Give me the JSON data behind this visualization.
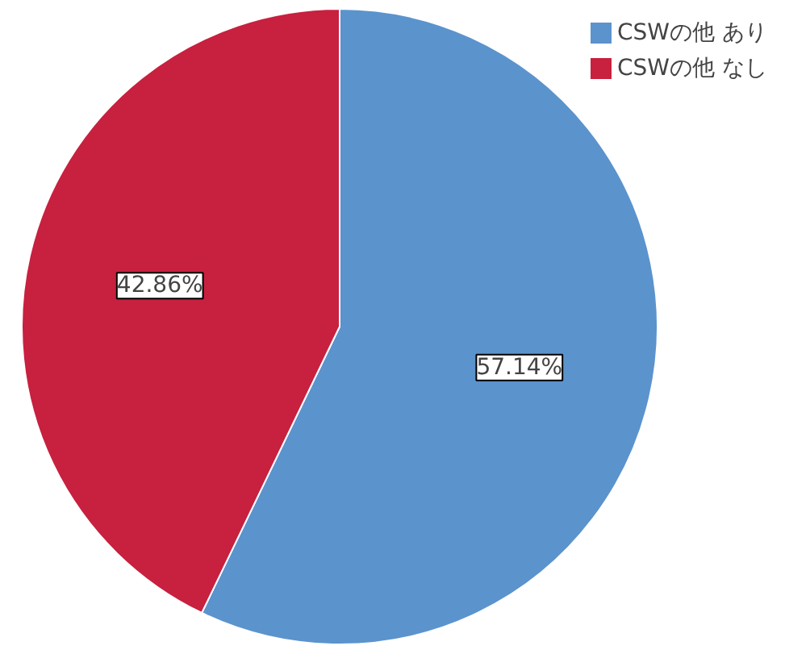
{
  "chart_data": {
    "type": "pie",
    "categories": [
      "CSWの他 あり",
      "CSWの他 なし"
    ],
    "values": [
      57.14,
      42.86
    ],
    "colors": [
      "#5b93cd",
      "#c8203f"
    ],
    "value_labels": [
      "57.14%",
      "42.86%"
    ],
    "legend": "top right"
  }
}
